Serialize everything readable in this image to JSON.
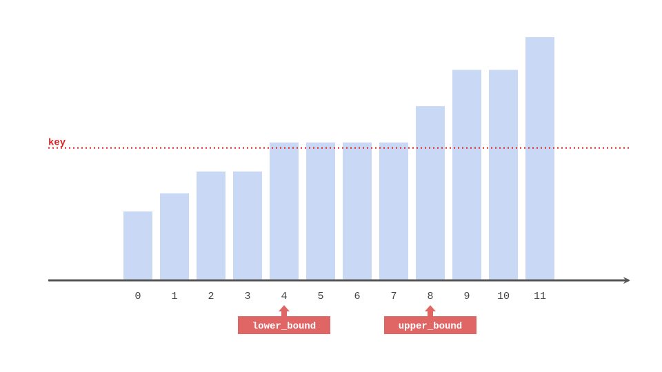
{
  "colors": {
    "bar": "#c9d9f5",
    "axis": "#555555",
    "key": "#e02020",
    "marker": "#e06666",
    "marker_text": "#ffffff"
  },
  "chart_data": {
    "type": "bar",
    "categories": [
      "0",
      "1",
      "2",
      "3",
      "4",
      "5",
      "6",
      "7",
      "8",
      "9",
      "10",
      "11"
    ],
    "values": [
      19,
      24,
      30,
      30,
      38,
      38,
      38,
      38,
      48,
      58,
      58,
      67
    ],
    "key": {
      "label": "key",
      "value": 36.5
    },
    "markers": [
      {
        "label": "lower_bound",
        "index": 4
      },
      {
        "label": "upper_bound",
        "index": 8
      }
    ],
    "ylim": [
      0,
      72
    ]
  }
}
